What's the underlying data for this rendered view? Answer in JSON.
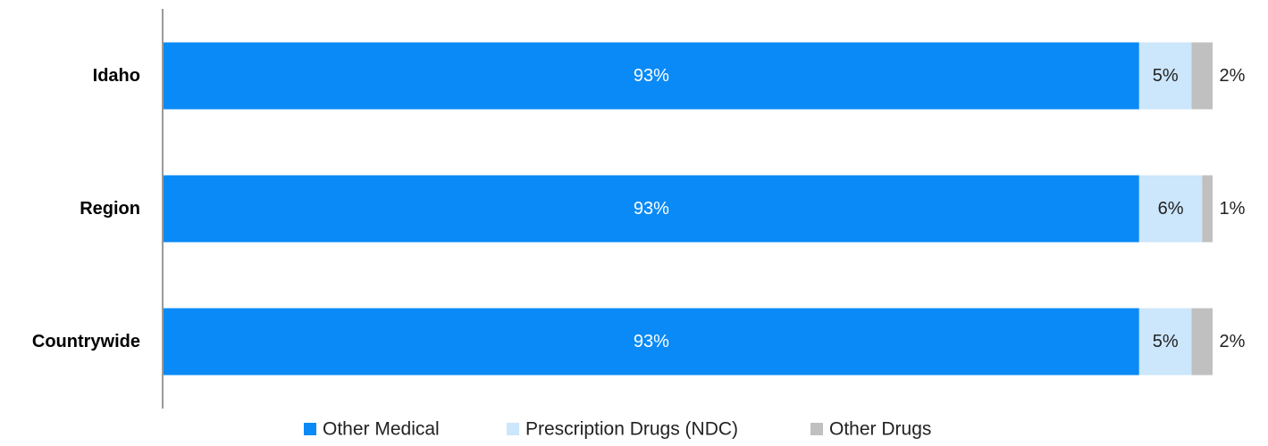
{
  "chart_data": {
    "type": "bar",
    "orientation": "horizontal",
    "stacked": true,
    "categories": [
      "Idaho",
      "Region",
      "Countrywide"
    ],
    "series": [
      {
        "name": "Other Medical",
        "values": [
          93,
          93,
          93
        ],
        "labels": [
          "93%",
          "93%",
          "93%"
        ],
        "color": "#0a8af6",
        "label_color": "#ffffff"
      },
      {
        "name": "Prescription Drugs (NDC)",
        "values": [
          5,
          6,
          5
        ],
        "labels": [
          "5%",
          "6%",
          "5%"
        ],
        "color": "#cce6fb",
        "label_color": "#222222"
      },
      {
        "name": "Other Drugs",
        "values": [
          2,
          1,
          2
        ],
        "labels": [
          "2%",
          "1%",
          "2%"
        ],
        "color": "#c0c0c0",
        "label_color": "#222222"
      }
    ],
    "xlim": [
      0,
      100
    ],
    "grid": false,
    "legend": "bottom",
    "title": "",
    "xlabel": "",
    "ylabel": ""
  }
}
